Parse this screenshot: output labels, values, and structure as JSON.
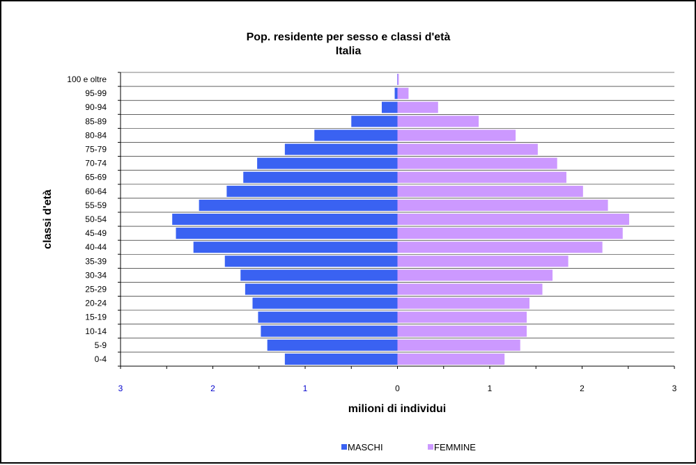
{
  "chart_data": {
    "type": "bar",
    "orientation": "horizontal",
    "title": "Pop. residente per sesso e classi d'età",
    "subtitle": "Italia",
    "xlabel": "milioni di individui",
    "ylabel": "classi d'età",
    "xlim": [
      -3,
      3
    ],
    "x_ticks": [
      {
        "value": -3,
        "label": "3"
      },
      {
        "value": -2,
        "label": "2"
      },
      {
        "value": -1,
        "label": "1"
      },
      {
        "value": 0,
        "label": "0"
      },
      {
        "value": 1,
        "label": "1"
      },
      {
        "value": 2,
        "label": "2"
      },
      {
        "value": 3,
        "label": "3"
      }
    ],
    "grid": "horizontal",
    "legend_position": "bottom",
    "categories": [
      "0-4",
      "5-9",
      "10-14",
      "15-19",
      "20-24",
      "25-29",
      "30-34",
      "35-39",
      "40-44",
      "45-49",
      "50-54",
      "55-59",
      "60-64",
      "65-69",
      "70-74",
      "75-79",
      "80-84",
      "85-89",
      "90-94",
      "95-99",
      "100 e oltre"
    ],
    "series": [
      {
        "name": "MASCHI",
        "color": "#3a62f2",
        "values": [
          -1.22,
          -1.41,
          -1.48,
          -1.51,
          -1.57,
          -1.65,
          -1.7,
          -1.87,
          -2.21,
          -2.4,
          -2.44,
          -2.15,
          -1.85,
          -1.67,
          -1.52,
          -1.22,
          -0.9,
          -0.5,
          -0.17,
          -0.03,
          -0.003
        ]
      },
      {
        "name": "FEMMINE",
        "color": "#cc99ff",
        "values": [
          1.16,
          1.33,
          1.4,
          1.4,
          1.43,
          1.57,
          1.68,
          1.85,
          2.22,
          2.44,
          2.51,
          2.28,
          2.01,
          1.83,
          1.73,
          1.52,
          1.28,
          0.88,
          0.44,
          0.12,
          0.015
        ]
      }
    ]
  },
  "colors": {
    "neg_tick": "#0000cc",
    "pos_tick": "#000000",
    "grid": "#000000"
  }
}
